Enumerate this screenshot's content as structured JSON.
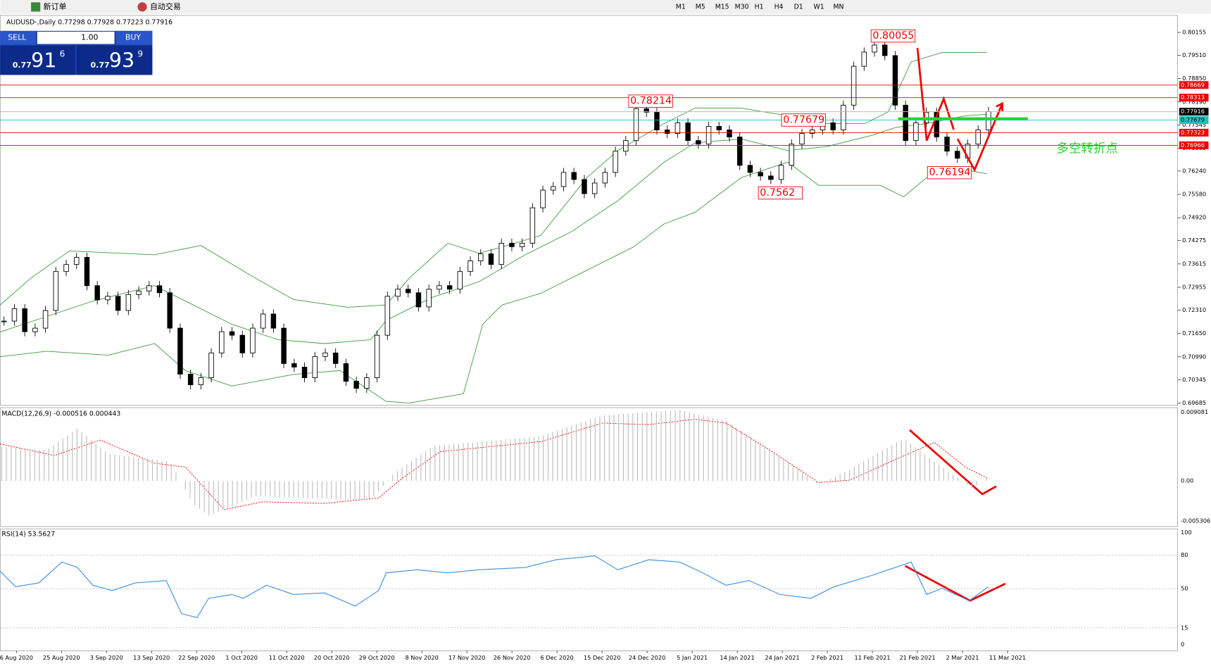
{
  "toolbar": {
    "new_order": "新订单",
    "auto_trading": "自动交易",
    "timeframes": [
      "M1",
      "M5",
      "M15",
      "M30",
      "H1",
      "H4",
      "D1",
      "W1",
      "MN"
    ]
  },
  "chart": {
    "header": "AUDUSD-,Daily 0.77298 0.77928 0.77223 0.77916",
    "trade_panel": {
      "sell": "SELL",
      "lot": "1.00",
      "buy": "BUY",
      "sell_prefix": "0.77",
      "sell_digits": "91",
      "sell_pip": "6",
      "buy_prefix": "0.77",
      "buy_digits": "93",
      "buy_pip": "9"
    },
    "price_ticks": [
      0.80155,
      {
        "value": 0.7951,
        "label": "0.79510"
      },
      {
        "value": 0.7885,
        "label": "0.78850"
      },
      {
        "value": 0.7819,
        "label": "0.78190"
      },
      0.77545,
      0.76885,
      {
        "value": 0.7624,
        "label": "0.76240"
      },
      {
        "value": 0.7558,
        "label": "0.75580"
      },
      {
        "value": 0.7492,
        "label": "0.74920"
      },
      0.74275,
      0.73615,
      0.72955,
      {
        "value": 0.7231,
        "label": "0.72310"
      },
      {
        "value": 0.7165,
        "label": "0.71650"
      },
      {
        "value": 0.7099,
        "label": "0.70990"
      },
      0.70345,
      0.69685
    ],
    "levels": [
      0.78669,
      0.78313,
      0.77323,
      0.76966
    ],
    "current_price": 0.77916,
    "pivot_level": 0.77679,
    "annotations": [
      0.80055,
      0.78214,
      0.77679,
      0.7562,
      0.76194
    ],
    "annotation_label": "多空转折点",
    "closes": [
      0.72,
      0.7235,
      0.717,
      0.718,
      0.723,
      0.734,
      0.736,
      0.738,
      0.73,
      0.726,
      0.727,
      0.723,
      0.7275,
      0.7285,
      0.73,
      0.728,
      0.718,
      0.705,
      0.702,
      0.704,
      0.711,
      0.717,
      0.716,
      0.711,
      0.718,
      0.722,
      0.718,
      0.708,
      0.707,
      0.704,
      0.71,
      0.711,
      0.708,
      0.703,
      0.701,
      0.704,
      0.716,
      0.727,
      0.729,
      0.728,
      0.724,
      0.729,
      0.73,
      0.729,
      0.734,
      0.737,
      0.739,
      0.736,
      0.742,
      0.741,
      0.742,
      0.752,
      0.757,
      0.758,
      0.762,
      0.76,
      0.756,
      0.759,
      0.762,
      0.768,
      0.771,
      0.78,
      0.779,
      0.774,
      0.773,
      0.776,
      0.771,
      0.77,
      0.775,
      0.774,
      0.772,
      0.764,
      0.762,
      0.761,
      0.76,
      0.764,
      0.77,
      0.773,
      0.774,
      0.776,
      0.774,
      0.781,
      0.792,
      0.796,
      0.798,
      0.795,
      0.781,
      0.771,
      0.776,
      0.779,
      0.772,
      0.768,
      0.766,
      0.77,
      0.774,
      0.7792
    ],
    "dates": [
      "6 Aug 2020",
      "25 Aug 2020",
      "3 Sep 2020",
      "13 Sep 2020",
      "22 Sep 2020",
      "1 Oct 2020",
      "11 Oct 2020",
      "20 Oct 2020",
      "29 Oct 2020",
      "8 Nov 2020",
      "17 Nov 2020",
      "26 Nov 2020",
      "6 Dec 2020",
      "15 Dec 2020",
      "24 Dec 2020",
      "5 Jan 2021",
      "14 Jan 2021",
      "24 Jan 2021",
      "2 Feb 2021",
      "11 Feb 2021",
      "21 Feb 2021",
      "2 Mar 2021",
      "11 Mar 2021"
    ]
  },
  "macd": {
    "label": "MACD(12,26,9) -0.000516 0.000443",
    "ticks": [
      0.009081,
      {
        "value": 0,
        "label": "0.00"
      },
      -0.005306
    ]
  },
  "rsi": {
    "label": "RSI(14) 53.5627",
    "ticks": [
      100,
      80,
      50,
      15,
      0
    ]
  }
}
